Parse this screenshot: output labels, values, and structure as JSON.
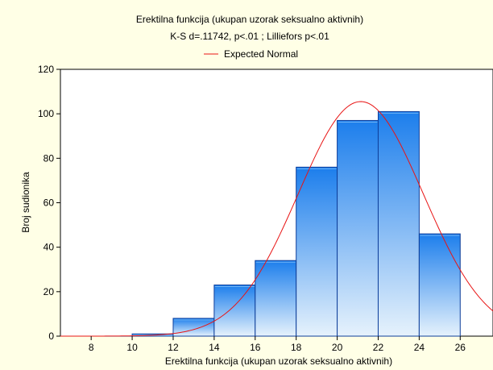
{
  "chart_data": {
    "type": "bar",
    "title": "Erektilna funkcija (ukupan uzorak seksualno aktivnih)",
    "subtitle": "K-S d=.11742, p<.01 ; Lilliefors p<.01",
    "legend": {
      "label": "Expected Normal",
      "placement": "top-center"
    },
    "xlabel": "Erektilna funkcija (ukupan uzorak seksualno aktivnih)",
    "ylabel": "Broj sudionika",
    "xlim": [
      6.5,
      27.6
    ],
    "ylim": [
      0,
      120
    ],
    "x_ticks": [
      8,
      10,
      12,
      14,
      16,
      18,
      20,
      22,
      24,
      26
    ],
    "y_ticks": [
      0,
      20,
      40,
      60,
      80,
      100,
      120
    ],
    "grid": false,
    "bins": [
      {
        "from": 8,
        "to": 10,
        "count": 0
      },
      {
        "from": 10,
        "to": 12,
        "count": 1
      },
      {
        "from": 12,
        "to": 14,
        "count": 8
      },
      {
        "from": 14,
        "to": 16,
        "count": 23
      },
      {
        "from": 16,
        "to": 18,
        "count": 34
      },
      {
        "from": 18,
        "to": 20,
        "count": 76
      },
      {
        "from": 20,
        "to": 22,
        "count": 97
      },
      {
        "from": 22,
        "to": 24,
        "count": 101
      },
      {
        "from": 24,
        "to": 26,
        "count": 46
      }
    ],
    "normal_curve": {
      "mean": 21.15,
      "sd": 3.05,
      "peak": 105.5
    },
    "colors": {
      "bar_light": "#E6F2FC",
      "bar_dark": "#1C7EEC",
      "bar_stroke": "#0D3E9A",
      "curve": "#E81414",
      "background": "#FFFFE6",
      "plot_background": "#FFFFFF"
    }
  }
}
